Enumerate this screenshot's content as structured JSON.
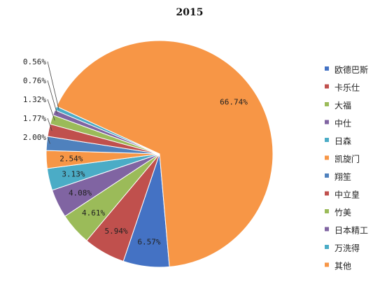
{
  "chart_data": {
    "type": "pie",
    "title": "2015",
    "legend_position": "right",
    "slices": [
      {
        "name": "欧德巴斯",
        "value": 6.57,
        "label": "6.57%",
        "color": "#4472C4"
      },
      {
        "name": "卡乐仕",
        "value": 5.94,
        "label": "5.94%",
        "color": "#C0504D"
      },
      {
        "name": "大福",
        "value": 4.61,
        "label": "4.61%",
        "color": "#9BBB59"
      },
      {
        "name": "中仕",
        "value": 4.08,
        "label": "4.08%",
        "color": "#8064A2"
      },
      {
        "name": "日森",
        "value": 3.13,
        "label": "3.13%",
        "color": "#4BACC6"
      },
      {
        "name": "凯旋门",
        "value": 2.54,
        "label": "2.54%",
        "color": "#F79646"
      },
      {
        "name": "翔笙",
        "value": 2.0,
        "label": "2.00%",
        "color": "#4F81BD"
      },
      {
        "name": "中立皇",
        "value": 1.77,
        "label": "1.77%",
        "color": "#C0504D"
      },
      {
        "name": "竹美",
        "value": 1.32,
        "label": "1.32%",
        "color": "#9BBB59"
      },
      {
        "name": "日本精工",
        "value": 0.76,
        "label": "0.76%",
        "color": "#8064A2"
      },
      {
        "name": "万洗得",
        "value": 0.56,
        "label": "0.56%",
        "color": "#4BACC6"
      },
      {
        "name": "其他",
        "value": 66.74,
        "label": "66.74%",
        "color": "#F79646"
      }
    ]
  }
}
